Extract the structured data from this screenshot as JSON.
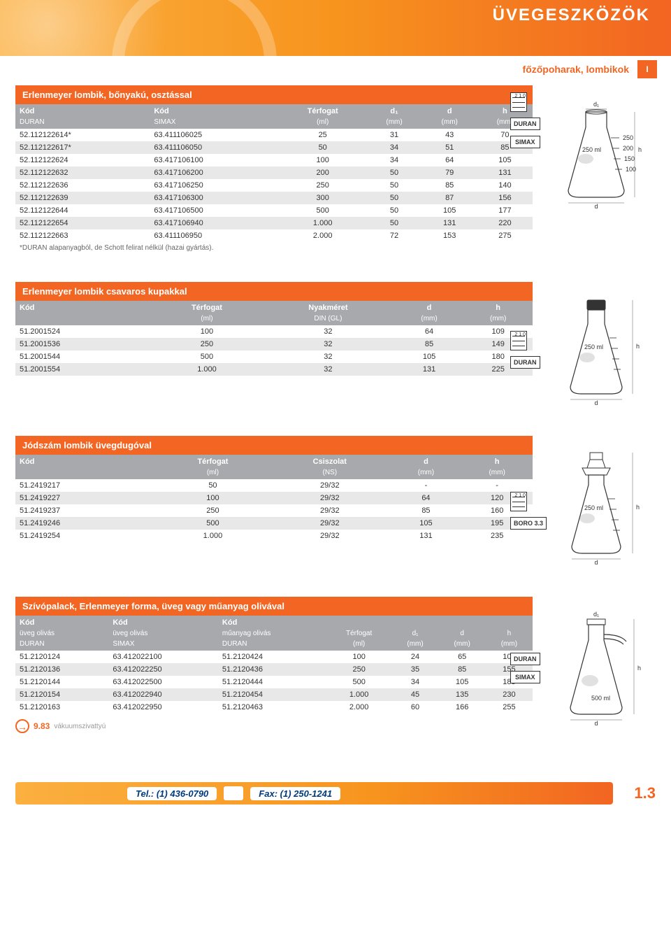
{
  "header": {
    "title": "ÜVEGESZKÖZÖK",
    "subtitle": "főzőpoharak, lombikok",
    "sectionTab": "I"
  },
  "tables": {
    "t1": {
      "title": "Erlenmeyer lombik, bőnyakú, osztással",
      "headersTop": [
        "Kód",
        "Kód",
        "Térfogat",
        "d₁",
        "d",
        "h"
      ],
      "headersBottom": [
        "DURAN",
        "SIMAX",
        "(ml)",
        "(mm)",
        "(mm)",
        "(mm)"
      ],
      "rows": [
        [
          "52.112122614*",
          "63.411106025",
          "25",
          "31",
          "43",
          "70"
        ],
        [
          "52.112122617*",
          "63.411106050",
          "50",
          "34",
          "51",
          "85"
        ],
        [
          "52.112122624",
          "63.417106100",
          "100",
          "34",
          "64",
          "105"
        ],
        [
          "52.112122632",
          "63.417106200",
          "200",
          "50",
          "79",
          "131"
        ],
        [
          "52.112122636",
          "63.417106250",
          "250",
          "50",
          "85",
          "140"
        ],
        [
          "52.112122639",
          "63.417106300",
          "300",
          "50",
          "87",
          "156"
        ],
        [
          "52.112122644",
          "63.417106500",
          "500",
          "50",
          "105",
          "177"
        ],
        [
          "52.112122654",
          "63.417106940",
          "1.000",
          "50",
          "131",
          "220"
        ],
        [
          "52.112122663",
          "63.411106950",
          "2.000",
          "72",
          "153",
          "275"
        ]
      ],
      "footnote": "*DURAN alapanyagból, de Schott felirat nélkül (hazai gyártás).",
      "badges": [
        "DURAN",
        "SIMAX"
      ]
    },
    "t2": {
      "title": "Erlenmeyer lombik csavaros kupakkal",
      "headersTop": [
        "Kód",
        "Térfogat",
        "Nyakméret",
        "d",
        "h"
      ],
      "headersBottom": [
        "",
        "(ml)",
        "DIN (GL)",
        "(mm)",
        "(mm)"
      ],
      "rows": [
        [
          "51.2001524",
          "100",
          "32",
          "64",
          "109"
        ],
        [
          "51.2001536",
          "250",
          "32",
          "85",
          "149"
        ],
        [
          "51.2001544",
          "500",
          "32",
          "105",
          "180"
        ],
        [
          "51.2001554",
          "1.000",
          "32",
          "131",
          "225"
        ]
      ],
      "badges": [
        "DURAN"
      ]
    },
    "t3": {
      "title": "Jódszám lombik üvegdugóval",
      "headersTop": [
        "Kód",
        "Térfogat",
        "Csiszolat",
        "d",
        "h"
      ],
      "headersBottom": [
        "",
        "(ml)",
        "(NS)",
        "(mm)",
        "(mm)"
      ],
      "rows": [
        [
          "51.2419217",
          "50",
          "29/32",
          "-",
          "-"
        ],
        [
          "51.2419227",
          "100",
          "29/32",
          "64",
          "120"
        ],
        [
          "51.2419237",
          "250",
          "29/32",
          "85",
          "160"
        ],
        [
          "51.2419246",
          "500",
          "29/32",
          "105",
          "195"
        ],
        [
          "51.2419254",
          "1.000",
          "29/32",
          "131",
          "235"
        ]
      ],
      "badges": [
        "BORO 3.3"
      ]
    },
    "t4": {
      "title": "Szívópalack, Erlenmeyer forma, üveg vagy műanyag olivával",
      "headersTop": [
        "Kód",
        "Kód",
        "Kód",
        "",
        "",
        "",
        ""
      ],
      "headersMid": [
        "üveg olivás",
        "üveg olivás",
        "műanyag olivás",
        "Térfogat",
        "d₁",
        "d",
        "h"
      ],
      "headersBottom": [
        "DURAN",
        "SIMAX",
        "DURAN",
        "(ml)",
        "(mm)",
        "(mm)",
        "(mm)"
      ],
      "rows": [
        [
          "51.2120124",
          "63.412022100",
          "51.2120424",
          "100",
          "24",
          "65",
          "100"
        ],
        [
          "51.2120136",
          "63.412022250",
          "51.2120436",
          "250",
          "35",
          "85",
          "155"
        ],
        [
          "51.2120144",
          "63.412022500",
          "51.2120444",
          "500",
          "34",
          "105",
          "185"
        ],
        [
          "51.2120154",
          "63.412022940",
          "51.2120454",
          "1.000",
          "45",
          "135",
          "230"
        ],
        [
          "51.2120163",
          "63.412022950",
          "51.2120463",
          "2.000",
          "60",
          "166",
          "255"
        ]
      ],
      "badges": [
        "DURAN",
        "SIMAX"
      ],
      "ref": {
        "num": "9.83",
        "label": "vákuumszivattyú"
      }
    }
  },
  "footer": {
    "phone": "Tel.: (1) 436-0790",
    "fax": "Fax: (1) 250-1241",
    "pageNum": "1.3"
  },
  "flask_labels": {
    "d1": "d₁",
    "d": "d",
    "h": "h",
    "vol": "250 ml",
    "vol2": "500 ml",
    "marks": [
      "250",
      "200",
      "150",
      "100"
    ]
  }
}
